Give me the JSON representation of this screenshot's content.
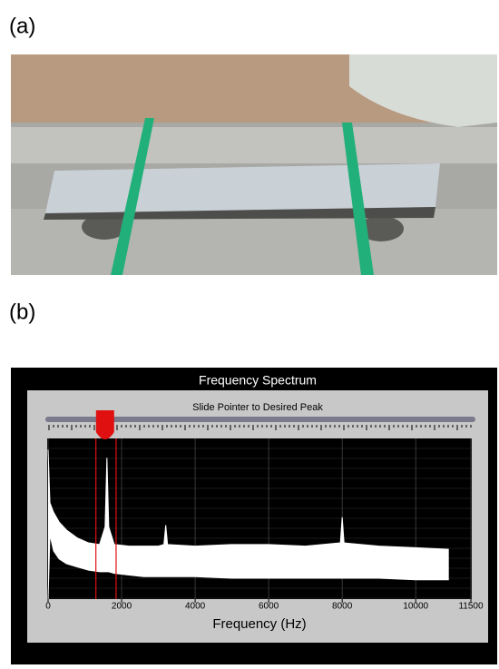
{
  "labels": [
    "(a)",
    "(b)"
  ],
  "panel": {
    "title": "Frequency Spectrum",
    "instruction": "Slide Pointer to Desired Peak"
  },
  "chart_data": {
    "type": "area",
    "xlabel": "Frequency (Hz)",
    "xlim": [
      0,
      11500
    ],
    "xticks": [
      0,
      2000,
      4000,
      6000,
      8000,
      10000,
      11500
    ],
    "ylim": [
      0,
      100
    ],
    "grid": true,
    "color": "#ffffff",
    "pointer": 1550,
    "band": [
      1300,
      1850
    ],
    "band_color": "#e01010",
    "x": [
      0,
      50,
      150,
      300,
      500,
      800,
      1100,
      1400,
      1550,
      1600,
      1650,
      1800,
      2200,
      2600,
      3000,
      3150,
      3200,
      3250,
      4000,
      5000,
      6000,
      7000,
      7950,
      8000,
      8050,
      9000,
      10000,
      10900
    ],
    "series": [
      {
        "values": [
          93,
          60,
          54,
          48,
          43,
          38,
          35,
          34,
          45,
          88,
          45,
          34,
          33,
          33,
          33,
          34,
          46,
          34,
          33,
          34,
          34,
          33,
          35,
          51,
          35,
          33,
          32,
          31
        ]
      },
      {
        "values": [
          0,
          40,
          30,
          25,
          22,
          20,
          18,
          17,
          17,
          17,
          17,
          16,
          15,
          14,
          14,
          14,
          14,
          14,
          14,
          13,
          13,
          13,
          13,
          13,
          13,
          13,
          12,
          12
        ]
      }
    ]
  }
}
